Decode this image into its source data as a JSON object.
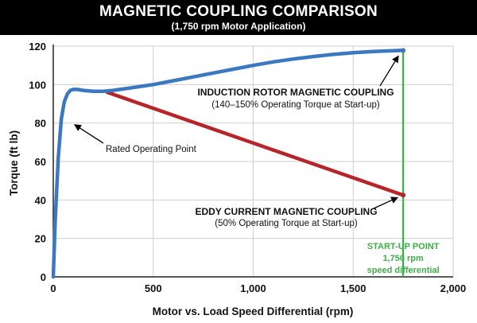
{
  "header": {
    "title": "MAGNETIC COUPLING COMPARISON",
    "subtitle": "(1,750 rpm Motor Application)"
  },
  "chart_data": {
    "type": "line",
    "xlabel": "Motor vs. Load Speed Differential  (rpm)",
    "ylabel": "Torque (ft lb)",
    "xlim": [
      0,
      2000
    ],
    "ylim": [
      0,
      120
    ],
    "xticks": [
      0,
      500,
      1000,
      1500,
      2000
    ],
    "xtick_labels": [
      "0",
      "500",
      "1,000",
      "1,500",
      "2,000"
    ],
    "yticks": [
      0,
      20,
      40,
      60,
      80,
      100,
      120
    ],
    "ytick_labels": [
      "0",
      "20",
      "40",
      "60",
      "80",
      "100",
      "120"
    ],
    "grid": true,
    "series": [
      {
        "name": "INDUCTION ROTOR MAGNETIC COUPLING",
        "color": "#3c78c0",
        "x": [
          0,
          10,
          25,
          40,
          55,
          70,
          85,
          100,
          120,
          150,
          200,
          250,
          300,
          400,
          500,
          600,
          700,
          800,
          900,
          1000,
          1100,
          1200,
          1300,
          1400,
          1500,
          1600,
          1700,
          1750
        ],
        "y": [
          0,
          30,
          62,
          82,
          91,
          95,
          97,
          97.5,
          97.5,
          97,
          96.5,
          96.5,
          97,
          98.5,
          100,
          102,
          104,
          106,
          108,
          110,
          111.8,
          113.3,
          114.6,
          115.7,
          116.6,
          117.2,
          117.6,
          117.8
        ]
      },
      {
        "name": "EDDY CURRENT MAGNETIC COUPLING",
        "color": "#b5252a",
        "x": [
          270,
          1750
        ],
        "y": [
          96,
          42.5
        ]
      }
    ],
    "reference_line": {
      "x": 1750,
      "color": "#3fae49",
      "label_lines": [
        "START-UP POINT",
        "1,750 rpm",
        "speed differential"
      ]
    },
    "annotations": [
      {
        "id": "rated",
        "text": "Rated Operating Point",
        "point": [
          75,
          80
        ]
      },
      {
        "id": "induction",
        "text": "INDUCTION ROTOR MAGNETIC COUPLING",
        "subtext": "(140–150% Operating Torque at Start-up)",
        "point": [
          1750,
          117.8
        ]
      },
      {
        "id": "eddy",
        "text": "EDDY CURRENT MAGNETIC COUPLING",
        "subtext": "(50% Operating Torque at Start-up)",
        "point": [
          1750,
          42.5
        ]
      }
    ]
  }
}
